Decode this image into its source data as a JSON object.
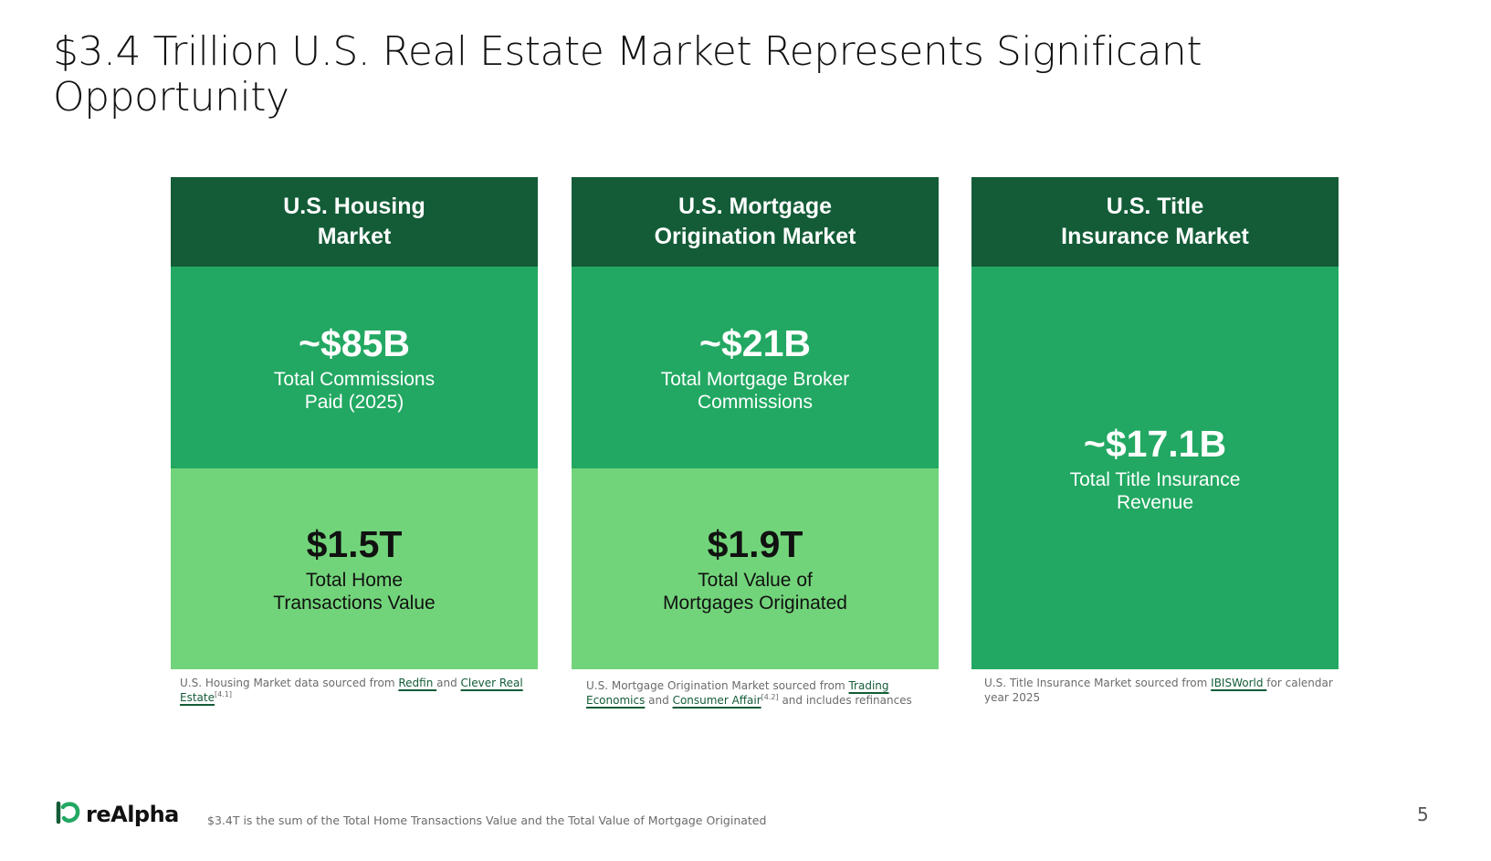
{
  "title": "$3.4 Trillion U.S. Real Estate Market Represents Significant Opportunity",
  "colors": {
    "header": "#135c37",
    "mid": "#22a862",
    "light": "#72d47a",
    "link": "#135c37"
  },
  "cards": [
    {
      "heading": [
        "U.S. Housing",
        "Market"
      ],
      "top_value": "~$85B",
      "top_desc": [
        "Total Commissions",
        "Paid (2025)"
      ],
      "bottom_value": "$1.5T",
      "bottom_desc": [
        "Total Home",
        "Transactions Value"
      ],
      "note": {
        "text1": "U.S. Housing Market data sourced from ",
        "link1": "Redfin ",
        "text2": "and ",
        "link2": "Clever Real Estate",
        "sup": "[4.1]",
        "text3": ""
      }
    },
    {
      "heading": [
        "U.S. Mortgage",
        "Origination Market"
      ],
      "top_value": "~$21B",
      "top_desc": [
        "Total Mortgage Broker",
        "Commissions"
      ],
      "bottom_value": "$1.9T",
      "bottom_desc": [
        "Total Value of",
        "Mortgages Originated"
      ],
      "note": {
        "text1": "U.S. Mortgage Origination Market sourced from ",
        "link1": "Trading Economics",
        "text2": " and ",
        "link2": "Consumer Affair",
        "sup": "[4.2]",
        "text3": " and includes refinances"
      }
    },
    {
      "heading": [
        "U.S. Title",
        "Insurance Market"
      ],
      "value": "~$17.1B",
      "desc": [
        "Total Title Insurance",
        "Revenue"
      ],
      "note": {
        "text1": "U.S. Title Insurance Market sourced from ",
        "link1": "IBISWorld ",
        "text2": "for calendar year 2025"
      }
    }
  ],
  "footer": {
    "logo_text": "reAlpha",
    "logo_icon": "realpha-logo-icon",
    "footnote": "$3.4T is the sum of the Total Home Transactions Value and the Total Value of Mortgage Originated",
    "page_number": "5"
  }
}
